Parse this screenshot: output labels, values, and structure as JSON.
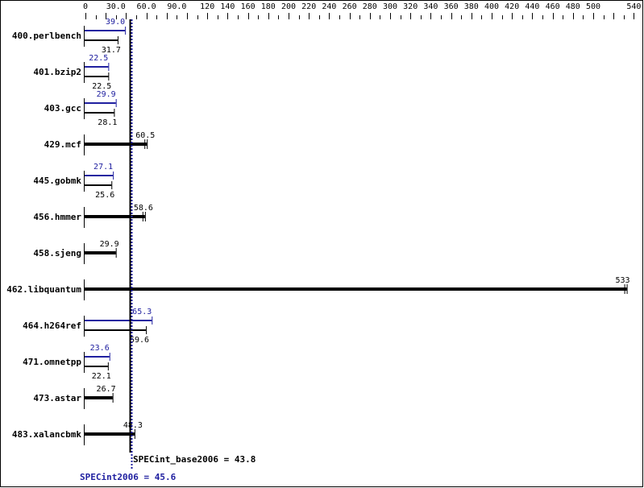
{
  "chart_data": {
    "type": "bar",
    "orientation": "horizontal",
    "title": "",
    "xlabel": "",
    "ylabel": "",
    "xlim": [
      0,
      540
    ],
    "x_ticks": [
      "0",
      "30.0",
      "60.0",
      "90.0",
      "120",
      "140",
      "160",
      "180",
      "200",
      "220",
      "240",
      "260",
      "280",
      "300",
      "320",
      "340",
      "360",
      "380",
      "400",
      "420",
      "440",
      "460",
      "480",
      "500",
      "540"
    ],
    "x_tick_values": [
      0,
      30,
      60,
      90,
      120,
      140,
      160,
      180,
      200,
      220,
      240,
      260,
      280,
      300,
      320,
      340,
      360,
      380,
      400,
      420,
      440,
      460,
      480,
      500,
      540
    ],
    "categories": [
      "400.perlbench",
      "401.bzip2",
      "403.gcc",
      "429.mcf",
      "445.gobmk",
      "456.hmmer",
      "458.sjeng",
      "462.libquantum",
      "464.h264ref",
      "471.omnetpp",
      "473.astar",
      "483.xalancbmk"
    ],
    "series": [
      {
        "name": "SPECint2006 (peak)",
        "color": "#2020a0",
        "values": [
          39.0,
          22.5,
          29.9,
          null,
          27.1,
          null,
          null,
          null,
          65.3,
          23.6,
          null,
          null
        ]
      },
      {
        "name": "SPECint_base2006",
        "color": "#000000",
        "values": [
          31.7,
          22.5,
          28.1,
          60.5,
          25.6,
          58.6,
          29.9,
          533,
          59.6,
          22.1,
          26.7,
          48.3
        ]
      }
    ],
    "value_labels": {
      "peak": [
        "39.0",
        "22.5",
        "29.9",
        null,
        "27.1",
        null,
        null,
        null,
        "65.3",
        "23.6",
        null,
        null
      ],
      "base": [
        "31.7",
        "22.5",
        "28.1",
        "60.5",
        "25.6",
        "58.6",
        "29.9",
        "533",
        "59.6",
        "22.1",
        "26.7",
        "48.3"
      ]
    },
    "reference_lines": [
      {
        "label": "SPECint_base2006 = 43.8",
        "value": 43.8,
        "color": "#000000",
        "style": "solid"
      },
      {
        "label": "SPECint2006 = 45.6",
        "value": 45.6,
        "color": "#2020a0",
        "style": "dotted"
      }
    ],
    "grid": false,
    "legend": "none"
  },
  "summary": {
    "base_label": "SPECint_base2006 = 43.8",
    "peak_label": "SPECint2006 = 45.6"
  },
  "colors": {
    "peak": "#2020a0",
    "base": "#000000",
    "background": "#ffffff"
  }
}
